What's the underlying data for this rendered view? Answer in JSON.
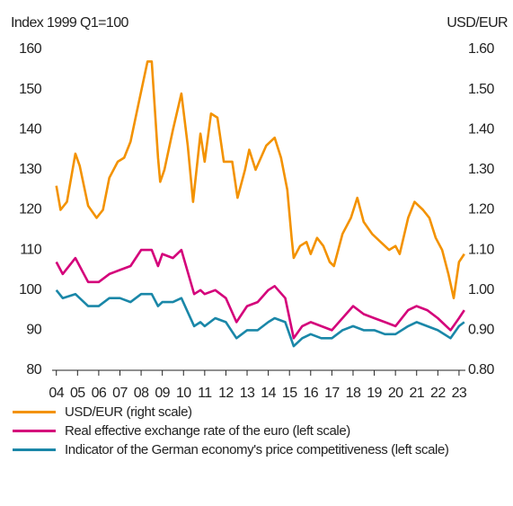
{
  "chart_data": {
    "type": "line",
    "y_label": "Index 1999 Q1=100",
    "y2_label": "USD/EUR",
    "xlim": [
      2003.8,
      2023.3
    ],
    "xticks": [
      {
        "value": 2004,
        "label": "04"
      },
      {
        "value": 2005,
        "label": "05"
      },
      {
        "value": 2006,
        "label": "06"
      },
      {
        "value": 2007,
        "label": "07"
      },
      {
        "value": 2008,
        "label": "08"
      },
      {
        "value": 2009,
        "label": "09"
      },
      {
        "value": 2010,
        "label": "10"
      },
      {
        "value": 2011,
        "label": "11"
      },
      {
        "value": 2012,
        "label": "12"
      },
      {
        "value": 2013,
        "label": "13"
      },
      {
        "value": 2014,
        "label": "14"
      },
      {
        "value": 2015,
        "label": "15"
      },
      {
        "value": 2016,
        "label": "16"
      },
      {
        "value": 2017,
        "label": "17"
      },
      {
        "value": 2018,
        "label": "18"
      },
      {
        "value": 2019,
        "label": "19"
      },
      {
        "value": 2020,
        "label": "20"
      },
      {
        "value": 2021,
        "label": "21"
      },
      {
        "value": 2022,
        "label": "22"
      },
      {
        "value": 2023,
        "label": "23"
      }
    ],
    "ylim": [
      80,
      160
    ],
    "yticks": [
      80,
      90,
      100,
      110,
      120,
      130,
      140,
      150,
      160
    ],
    "y2lim": [
      0.8,
      1.6
    ],
    "y2ticks": [
      {
        "value": 0.8,
        "label": "0.80"
      },
      {
        "value": 0.9,
        "label": "0.90"
      },
      {
        "value": 1.0,
        "label": "1.00"
      },
      {
        "value": 1.1,
        "label": "1.10"
      },
      {
        "value": 1.2,
        "label": "1.20"
      },
      {
        "value": 1.3,
        "label": "1.30"
      },
      {
        "value": 1.4,
        "label": "1.40"
      },
      {
        "value": 1.5,
        "label": "1.50"
      },
      {
        "value": 1.6,
        "label": "1.60"
      }
    ],
    "series": [
      {
        "name": "USD/EUR (right scale)",
        "color": "#f39200",
        "axis": "y2",
        "x": [
          2004.0,
          2004.2,
          2004.5,
          2004.9,
          2005.1,
          2005.5,
          2005.9,
          2006.2,
          2006.5,
          2006.9,
          2007.2,
          2007.5,
          2007.9,
          2008.3,
          2008.5,
          2008.8,
          2008.9,
          2009.1,
          2009.5,
          2009.9,
          2010.2,
          2010.45,
          2010.8,
          2011.0,
          2011.3,
          2011.6,
          2011.9,
          2012.3,
          2012.55,
          2012.9,
          2013.1,
          2013.4,
          2013.9,
          2014.3,
          2014.6,
          2014.9,
          2015.1,
          2015.2,
          2015.5,
          2015.8,
          2016.0,
          2016.3,
          2016.6,
          2016.9,
          2017.1,
          2017.5,
          2017.9,
          2018.2,
          2018.5,
          2018.9,
          2019.3,
          2019.7,
          2020.0,
          2020.2,
          2020.6,
          2020.9,
          2021.3,
          2021.6,
          2021.9,
          2022.2,
          2022.5,
          2022.75,
          2023.0,
          2023.25
        ],
        "values": [
          1.26,
          1.2,
          1.22,
          1.34,
          1.31,
          1.21,
          1.18,
          1.2,
          1.28,
          1.32,
          1.33,
          1.37,
          1.47,
          1.57,
          1.57,
          1.33,
          1.27,
          1.3,
          1.4,
          1.49,
          1.36,
          1.22,
          1.39,
          1.32,
          1.44,
          1.43,
          1.32,
          1.32,
          1.23,
          1.3,
          1.35,
          1.3,
          1.36,
          1.38,
          1.33,
          1.25,
          1.13,
          1.08,
          1.11,
          1.12,
          1.09,
          1.13,
          1.11,
          1.07,
          1.06,
          1.14,
          1.18,
          1.23,
          1.17,
          1.14,
          1.12,
          1.1,
          1.11,
          1.09,
          1.18,
          1.22,
          1.2,
          1.18,
          1.13,
          1.1,
          1.04,
          0.98,
          1.07,
          1.09
        ]
      },
      {
        "name": "Real effective exchange rate of the euro (left scale)",
        "color": "#d4007a",
        "x": [
          2004.0,
          2004.3,
          2004.9,
          2005.5,
          2006.0,
          2006.5,
          2007.0,
          2007.5,
          2008.0,
          2008.5,
          2008.8,
          2009.0,
          2009.5,
          2009.9,
          2010.5,
          2010.8,
          2011.0,
          2011.5,
          2012.0,
          2012.5,
          2013.0,
          2013.5,
          2014.0,
          2014.3,
          2014.8,
          2015.2,
          2015.6,
          2016.0,
          2016.5,
          2017.0,
          2017.5,
          2018.0,
          2018.5,
          2019.0,
          2019.5,
          2020.0,
          2020.6,
          2021.0,
          2021.5,
          2022.0,
          2022.6,
          2023.0,
          2023.25
        ],
        "values": [
          107,
          104,
          108,
          102,
          102,
          104,
          105,
          106,
          110,
          110,
          106,
          109,
          108,
          110,
          99,
          100,
          99,
          100,
          98,
          92,
          96,
          97,
          100,
          101,
          98,
          88,
          91,
          92,
          91,
          90,
          93,
          96,
          94,
          93,
          92,
          91,
          95,
          96,
          95,
          93,
          90,
          93,
          95
        ]
      },
      {
        "name": "Indicator of the German economy's price competitiveness (left scale)",
        "color": "#1a87a8",
        "x": [
          2004.0,
          2004.3,
          2004.9,
          2005.5,
          2006.0,
          2006.5,
          2007.0,
          2007.5,
          2008.0,
          2008.5,
          2008.8,
          2009.0,
          2009.5,
          2009.9,
          2010.5,
          2010.8,
          2011.0,
          2011.5,
          2012.0,
          2012.5,
          2013.0,
          2013.5,
          2014.0,
          2014.3,
          2014.8,
          2015.2,
          2015.6,
          2016.0,
          2016.5,
          2017.0,
          2017.5,
          2018.0,
          2018.5,
          2019.0,
          2019.5,
          2020.0,
          2020.6,
          2021.0,
          2021.5,
          2022.0,
          2022.6,
          2023.0,
          2023.25
        ],
        "values": [
          100,
          98,
          99,
          96,
          96,
          98,
          98,
          97,
          99,
          99,
          96,
          97,
          97,
          98,
          91,
          92,
          91,
          93,
          92,
          88,
          90,
          90,
          92,
          93,
          92,
          86,
          88,
          89,
          88,
          88,
          90,
          91,
          90,
          90,
          89,
          89,
          91,
          92,
          91,
          90,
          88,
          91,
          92
        ]
      }
    ]
  }
}
